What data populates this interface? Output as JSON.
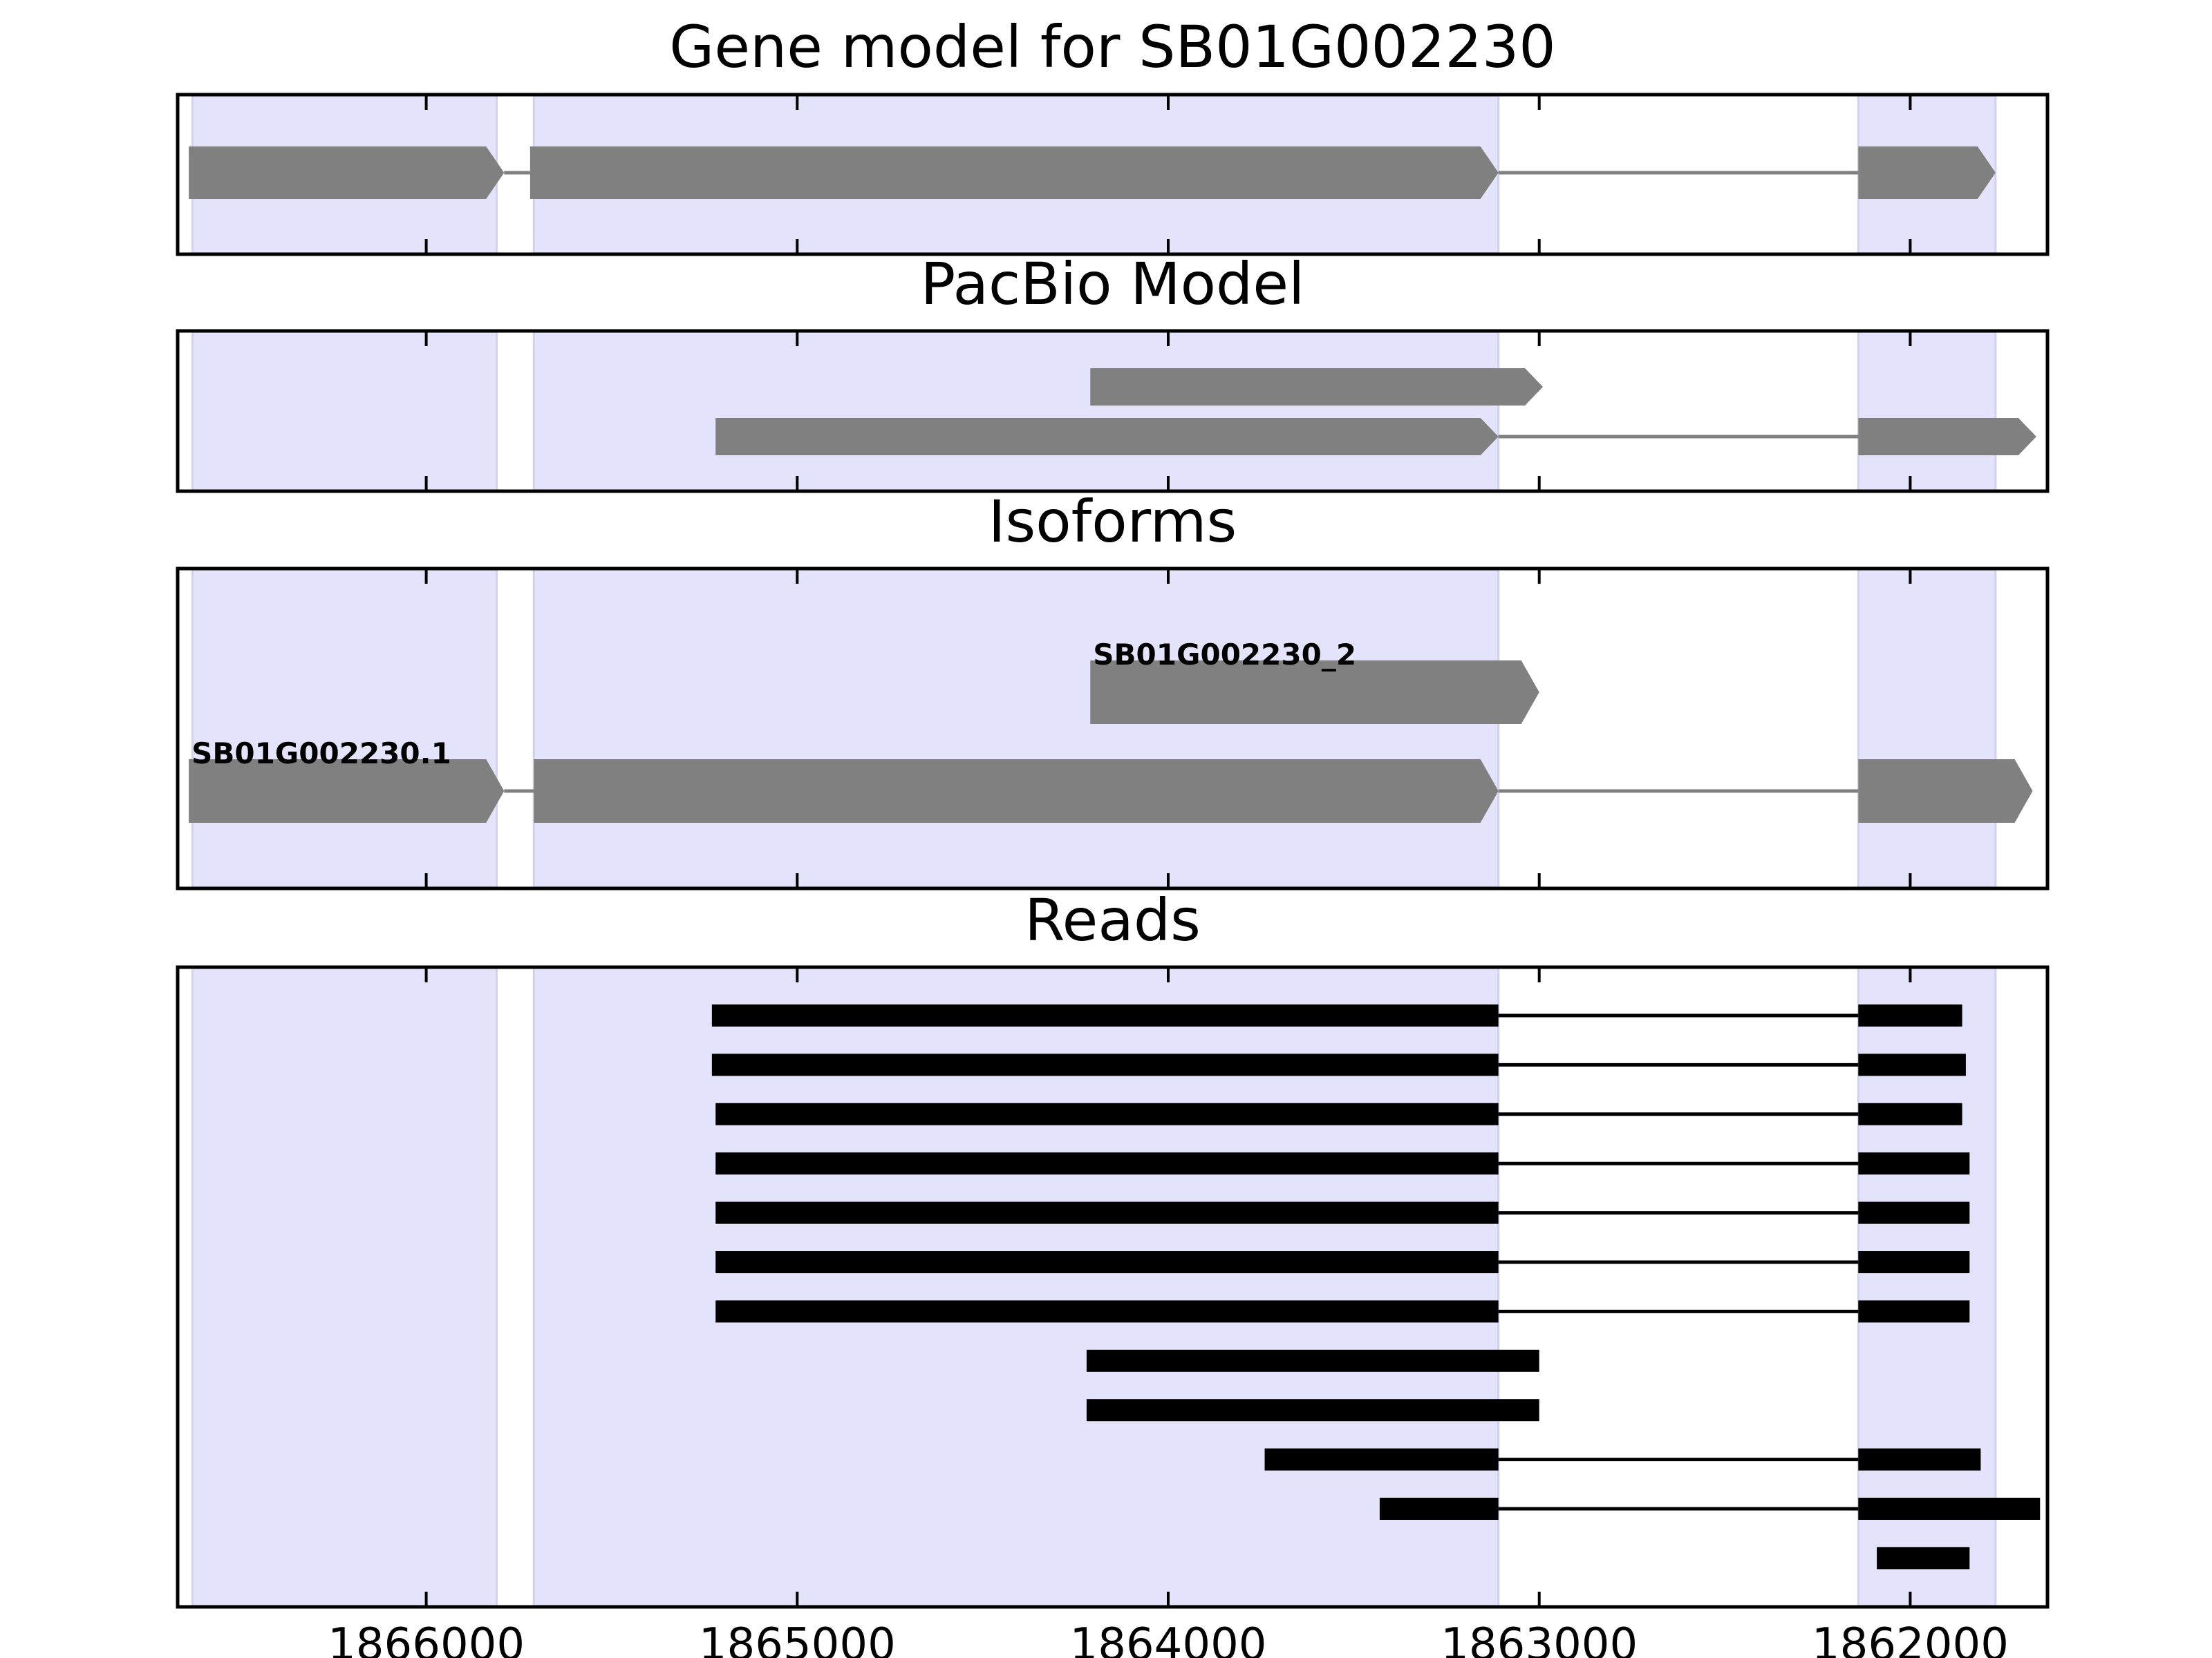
{
  "chart_data": {
    "type": "gene-track",
    "x_reversed": true,
    "xlim": [
      1866670,
      1861630
    ],
    "xticks": [
      1866000,
      1865000,
      1864000,
      1863000,
      1862000
    ],
    "xtick_labels": [
      "1866000",
      "1865000",
      "1864000",
      "1863000",
      "1862000"
    ],
    "grid": false,
    "shaded_regions": [
      [
        1866630,
        1865810
      ],
      [
        1865710,
        1863110
      ],
      [
        1862140,
        1861770
      ]
    ],
    "colors": {
      "shade": "#e3e3fc",
      "shade_edge": "#d2d2ee",
      "model": "#808080",
      "read": "#000000",
      "frame": "#000000"
    },
    "panels": [
      {
        "title": "Gene model for SB01G002230",
        "tracks": [
          {
            "label": "",
            "exons": [
              [
                1866640,
                1865790
              ],
              [
                1865720,
                1863110
              ],
              [
                1862140,
                1861770
              ]
            ]
          }
        ]
      },
      {
        "title": "PacBio Model",
        "tracks": [
          {
            "label": "",
            "exons": [
              [
                1864210,
                1862990
              ]
            ]
          },
          {
            "label": "",
            "exons": [
              [
                1865220,
                1863110
              ],
              [
                1862140,
                1861660
              ]
            ]
          }
        ]
      },
      {
        "title": "Isoforms",
        "tracks": [
          {
            "label": "SB01G002230_2",
            "exons": [
              [
                1864210,
                1863000
              ]
            ]
          },
          {
            "label": "SB01G002230.1",
            "exons": [
              [
                1866640,
                1865790
              ],
              [
                1865710,
                1863110
              ],
              [
                1862140,
                1861670
              ]
            ]
          }
        ]
      },
      {
        "title": "Reads",
        "reads": [
          [
            [
              1865230,
              1863110
            ],
            [
              1862140,
              1861860
            ]
          ],
          [
            [
              1865230,
              1863110
            ],
            [
              1862140,
              1861850
            ]
          ],
          [
            [
              1865220,
              1863110
            ],
            [
              1862140,
              1861860
            ]
          ],
          [
            [
              1865220,
              1863110
            ],
            [
              1862140,
              1861840
            ]
          ],
          [
            [
              1865220,
              1863110
            ],
            [
              1862140,
              1861840
            ]
          ],
          [
            [
              1865220,
              1863110
            ],
            [
              1862140,
              1861840
            ]
          ],
          [
            [
              1865220,
              1863110
            ],
            [
              1862140,
              1861840
            ]
          ],
          [
            [
              1864220,
              1863000
            ]
          ],
          [
            [
              1864220,
              1863000
            ]
          ],
          [
            [
              1863740,
              1863110
            ],
            [
              1862140,
              1861810
            ]
          ],
          [
            [
              1863430,
              1863110
            ],
            [
              1862140,
              1861650
            ]
          ],
          [
            [
              1862090,
              1861840
            ]
          ]
        ]
      }
    ]
  }
}
